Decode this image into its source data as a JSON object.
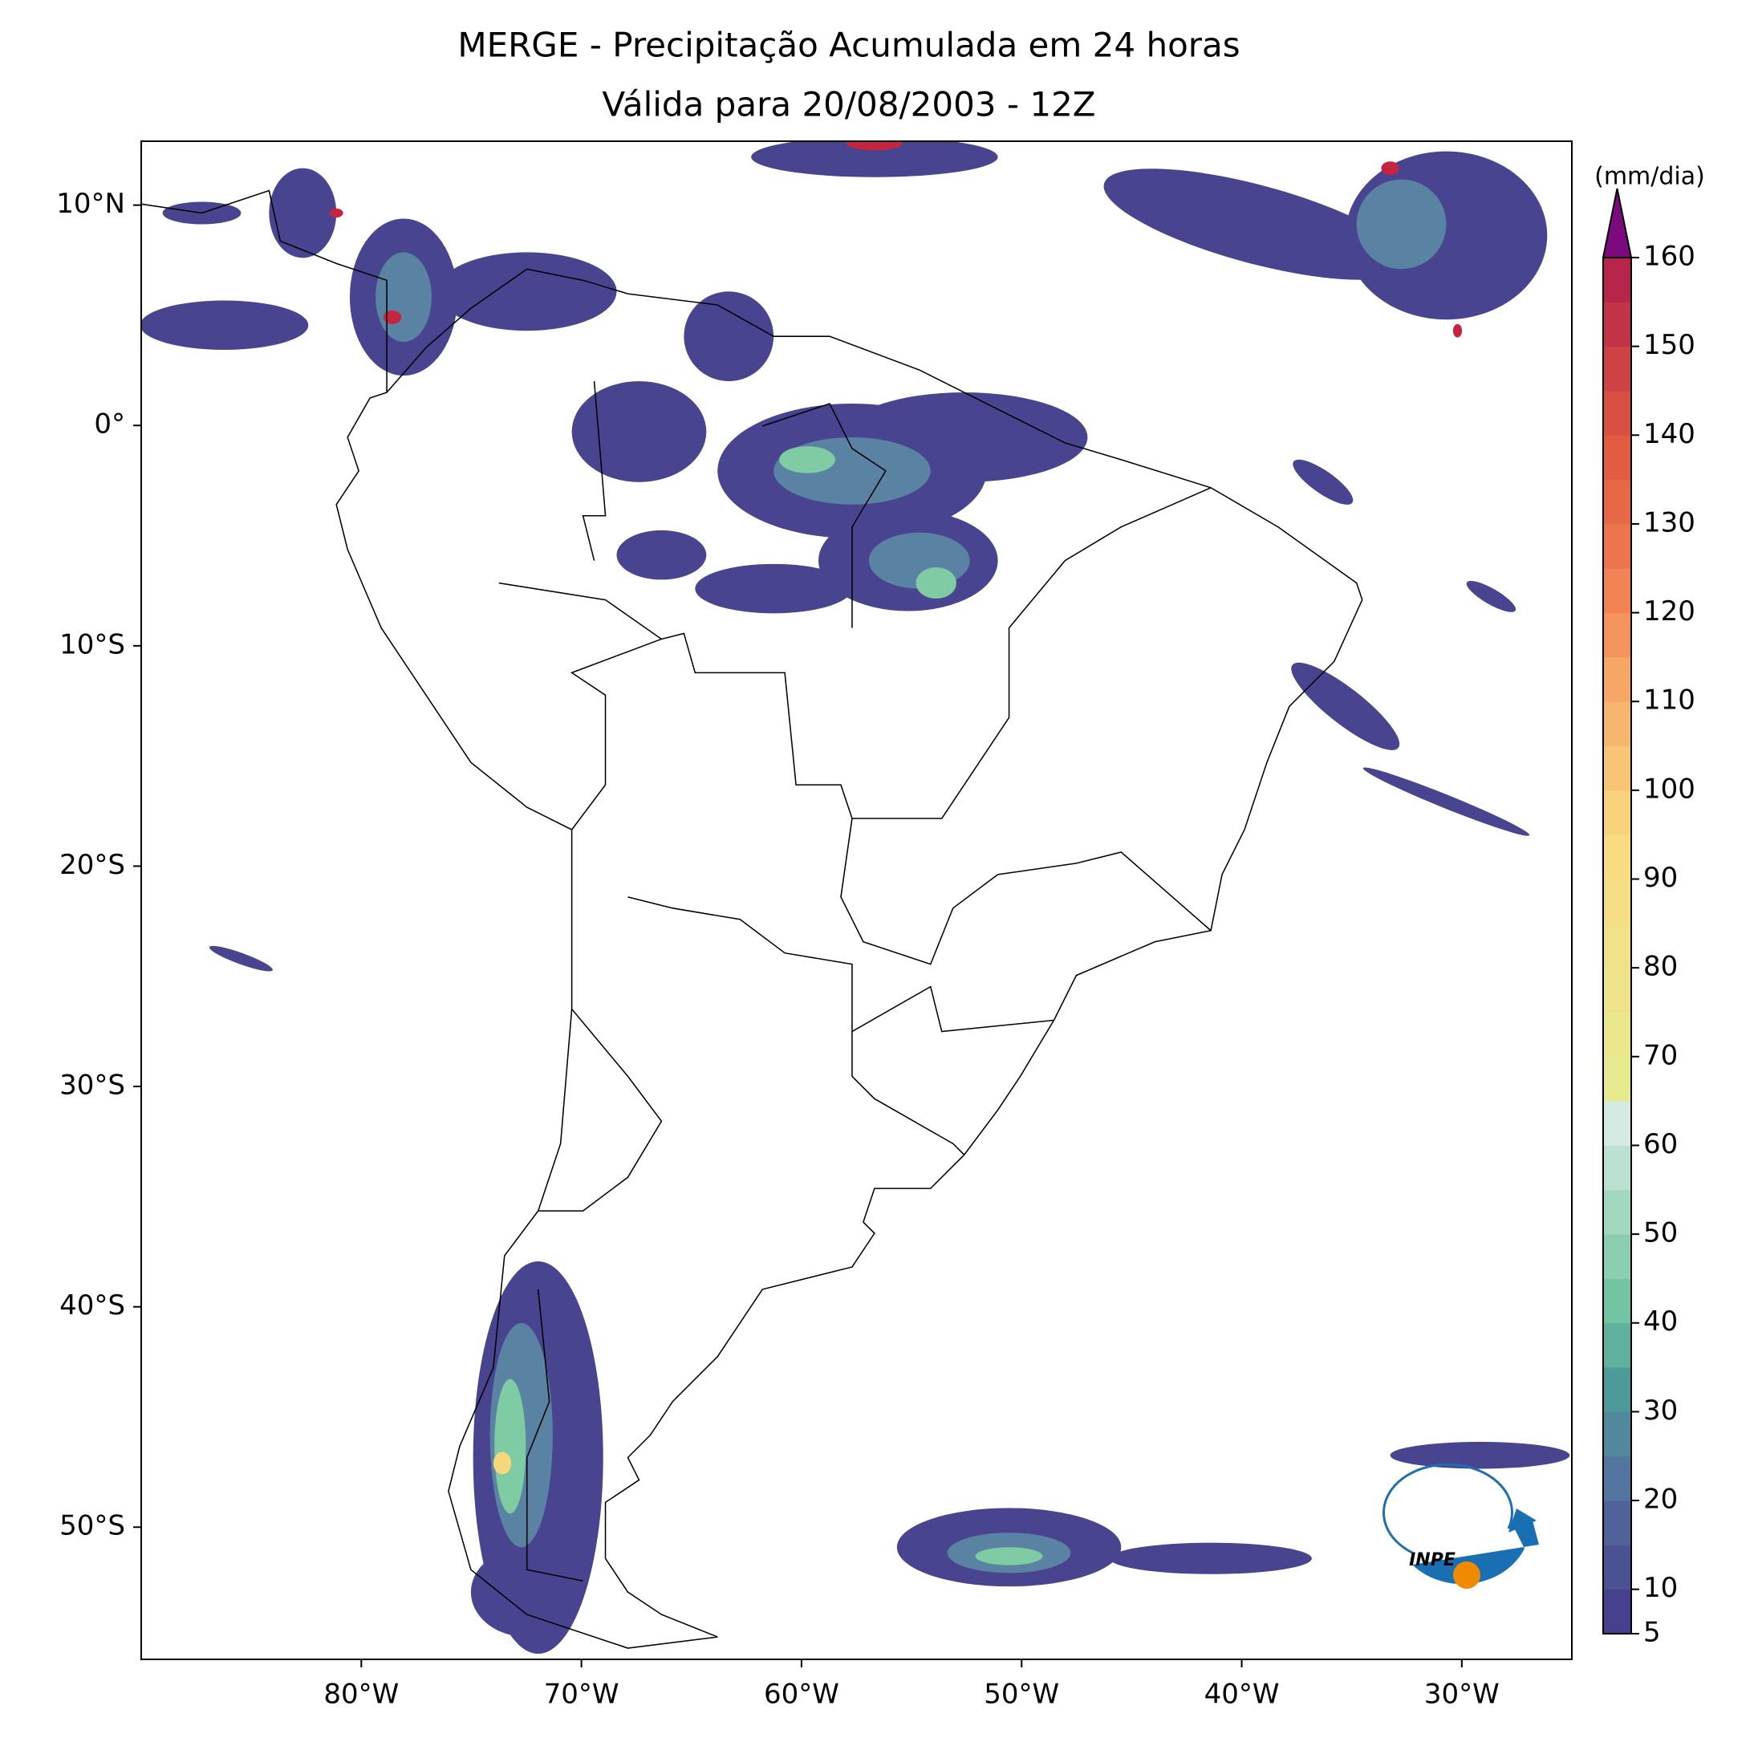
{
  "title": [
    "MERGE - Precipitação Acumulada em 24 horas",
    "Válida para 20/08/2003 - 12Z"
  ],
  "map": {
    "xlim": [
      -90,
      -25
    ],
    "ylim": [
      -56,
      12.9
    ],
    "xticks": [
      {
        "value": -80,
        "label": "80°W"
      },
      {
        "value": -70,
        "label": "70°W"
      },
      {
        "value": -60,
        "label": "60°W"
      },
      {
        "value": -50,
        "label": "50°W"
      },
      {
        "value": -40,
        "label": "40°W"
      },
      {
        "value": -30,
        "label": "30°W"
      }
    ],
    "yticks": [
      {
        "value": 10,
        "label": "10°N"
      },
      {
        "value": 0,
        "label": "0°"
      },
      {
        "value": -10,
        "label": "10°S"
      },
      {
        "value": -20,
        "label": "20°S"
      },
      {
        "value": -30,
        "label": "30°S"
      },
      {
        "value": -40,
        "label": "40°S"
      },
      {
        "value": -50,
        "label": "50°S"
      }
    ]
  },
  "colorbar": {
    "label": "(mm/dia)",
    "lim": [
      5,
      160
    ],
    "ticks": [
      5,
      10,
      20,
      30,
      40,
      50,
      60,
      70,
      80,
      90,
      100,
      110,
      120,
      130,
      140,
      150,
      160
    ]
  },
  "logo": "INPE"
}
